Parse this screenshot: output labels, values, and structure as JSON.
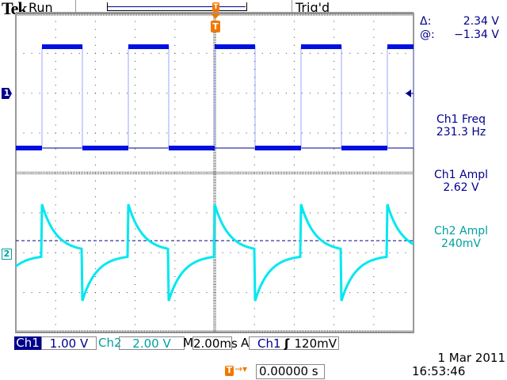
{
  "status": {
    "brand": "Tek",
    "acq_state": "Run",
    "trigger_state": "Trig'd"
  },
  "trigger_marker": "T",
  "cursors": {
    "delta_label": "Δ:",
    "delta_value": "2.34 V",
    "at_label": "@:",
    "at_value": "−1.34 V"
  },
  "measurements": [
    {
      "label": "Ch1 Freq",
      "value": "231.3 Hz",
      "color": "#00008c"
    },
    {
      "label": "Ch1 Ampl",
      "value": "2.62 V",
      "color": "#00008c"
    },
    {
      "label": "Ch2 Ampl",
      "value": "240mV",
      "color": "#00a0a0"
    }
  ],
  "channels": {
    "ch1": {
      "marker": "1",
      "label": "Ch1",
      "scale": "1.00 V",
      "color": "#0010e0"
    },
    "ch2": {
      "marker": "2",
      "label": "Ch2",
      "scale": "2.00 V",
      "color": "#00e8f0"
    }
  },
  "timebase": {
    "prefix": "M",
    "value": "2.00ms"
  },
  "trigger": {
    "mode": "A",
    "source": "Ch1",
    "slope_icon": "rising-edge",
    "level": "120mV"
  },
  "horizontal_position": {
    "value": "0.00000 s"
  },
  "date": "1 Mar  2011",
  "time": "16:53:46",
  "grid": {
    "h_divisions": 10,
    "v_divisions": 8
  }
}
